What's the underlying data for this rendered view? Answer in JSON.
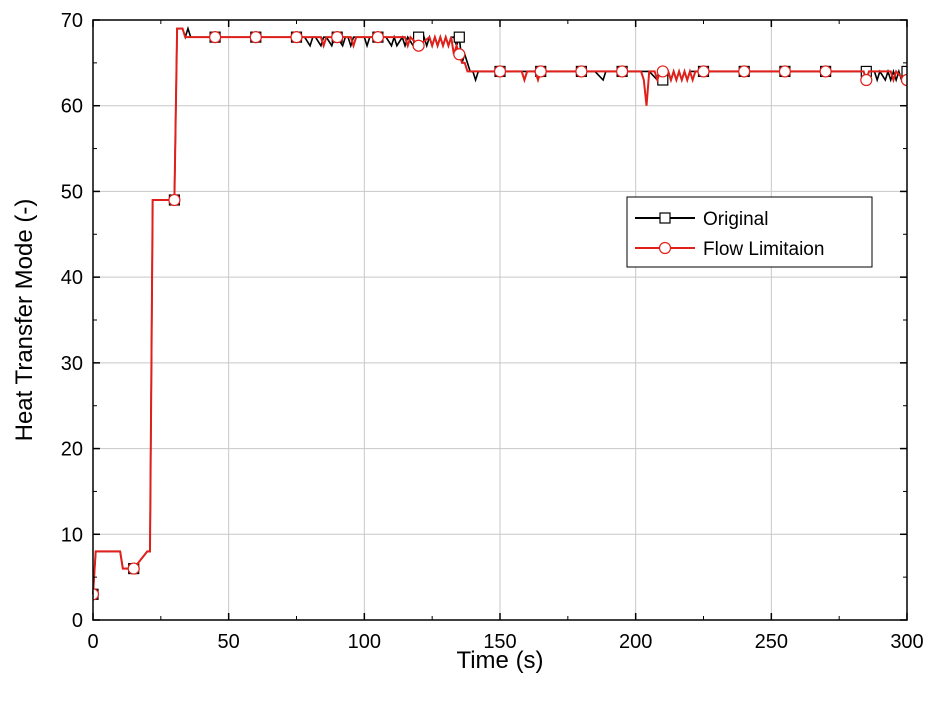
{
  "chart_data": {
    "type": "line",
    "xlabel": "Time (s)",
    "ylabel": "Heat Transfer Mode (-)",
    "xlim": [
      0,
      300
    ],
    "ylim": [
      0,
      70
    ],
    "xticks": [
      0,
      50,
      100,
      150,
      200,
      250,
      300
    ],
    "yticks": [
      0,
      10,
      20,
      30,
      40,
      50,
      60,
      70
    ],
    "grid": true,
    "legend_position": "right",
    "series": [
      {
        "name": "Original",
        "color": "#000000",
        "marker": "square",
        "x": [
          0,
          1,
          2,
          10,
          11,
          14,
          15,
          20,
          21,
          22,
          23,
          29,
          30,
          31,
          32,
          33,
          34,
          35,
          36,
          37,
          40,
          45,
          50,
          60,
          70,
          75,
          78,
          80,
          81,
          82,
          84,
          85,
          86,
          88,
          89,
          90,
          92,
          93,
          94,
          95,
          96,
          98,
          99,
          100,
          101,
          102,
          103,
          105,
          108,
          110,
          111,
          112,
          114,
          115,
          116,
          118,
          119,
          120,
          121,
          122,
          123,
          124,
          125,
          126,
          127,
          128,
          129,
          130,
          131,
          132,
          133,
          134,
          135,
          136,
          137,
          138,
          139,
          140,
          141,
          142,
          145,
          150,
          155,
          160,
          165,
          170,
          175,
          180,
          185,
          188,
          189,
          190,
          195,
          200,
          205,
          208,
          209,
          210,
          212,
          213,
          214,
          215,
          216,
          217,
          218,
          219,
          220,
          222,
          225,
          230,
          235,
          240,
          245,
          250,
          255,
          260,
          265,
          270,
          275,
          280,
          284,
          285,
          286,
          288,
          289,
          290,
          292,
          293,
          294,
          295,
          296,
          297,
          298,
          299
        ],
        "y": [
          3,
          8,
          8,
          8,
          6,
          6,
          6,
          8,
          8,
          49,
          49,
          49,
          49,
          69,
          69,
          69,
          68,
          69,
          68,
          68,
          68,
          68,
          68,
          68,
          68,
          68,
          68,
          67,
          68,
          68,
          67,
          68,
          68,
          67,
          68,
          68,
          67,
          68,
          68,
          67,
          68,
          68,
          68,
          68,
          67,
          68,
          68,
          68,
          68,
          67,
          68,
          67,
          68,
          67,
          68,
          67,
          68,
          68,
          67,
          68,
          67,
          68,
          67,
          68,
          67,
          68,
          67,
          68,
          67,
          68,
          68,
          67,
          68,
          65,
          66,
          65,
          64,
          64,
          63,
          64,
          64,
          64,
          64,
          64,
          64,
          64,
          64,
          64,
          64,
          63,
          64,
          64,
          64,
          64,
          64,
          63,
          64,
          63,
          64,
          63,
          64,
          63,
          64,
          63,
          64,
          63,
          64,
          64,
          64,
          64,
          64,
          64,
          64,
          64,
          64,
          64,
          64,
          64,
          64,
          64,
          64,
          63,
          64,
          64,
          63,
          64,
          63,
          64,
          63,
          64,
          63,
          64,
          63,
          64
        ],
        "marker_x": [
          0,
          15,
          30,
          45,
          60,
          75,
          90,
          105,
          120,
          135,
          150,
          165,
          180,
          195,
          210,
          225,
          240,
          255,
          270,
          285,
          300
        ],
        "marker_y": [
          3,
          6,
          49,
          68,
          68,
          68,
          68,
          68,
          68,
          68,
          64,
          64,
          64,
          64,
          63,
          64,
          64,
          64,
          64,
          64,
          64
        ]
      },
      {
        "name": "Flow Limitaion",
        "color": "#e0201b",
        "marker": "circle",
        "x": [
          0,
          1,
          2,
          10,
          11,
          14,
          15,
          20,
          21,
          22,
          23,
          29,
          30,
          31,
          32,
          33,
          34,
          35,
          40,
          45,
          50,
          60,
          70,
          75,
          80,
          84,
          85,
          86,
          90,
          95,
          96,
          97,
          100,
          105,
          110,
          115,
          116,
          117,
          120,
          124,
          125,
          126,
          127,
          128,
          129,
          130,
          131,
          132,
          133,
          134,
          135,
          136,
          137,
          138,
          139,
          140,
          145,
          150,
          155,
          158,
          159,
          160,
          163,
          164,
          165,
          170,
          175,
          180,
          185,
          190,
          195,
          200,
          202,
          203,
          204,
          205,
          207,
          208,
          209,
          210,
          212,
          213,
          214,
          215,
          216,
          217,
          218,
          219,
          220,
          221,
          222,
          225,
          230,
          235,
          240,
          245,
          250,
          255,
          260,
          265,
          270,
          275,
          280,
          284,
          285,
          286,
          290,
          294,
          295,
          296,
          299,
          300
        ],
        "y": [
          3,
          8,
          8,
          8,
          6,
          6,
          6,
          8,
          8,
          49,
          49,
          49,
          49,
          69,
          69,
          69,
          68,
          68,
          68,
          68,
          68,
          68,
          68,
          68,
          68,
          68,
          67,
          68,
          68,
          68,
          67,
          68,
          68,
          68,
          68,
          68,
          67,
          68,
          67,
          68,
          67,
          68,
          67,
          68,
          67,
          68,
          67,
          68,
          66,
          67,
          66,
          65,
          65,
          64,
          64,
          64,
          64,
          64,
          64,
          64,
          63,
          64,
          64,
          63,
          64,
          64,
          64,
          64,
          64,
          64,
          64,
          64,
          64,
          63,
          60,
          64,
          64,
          63,
          64,
          64,
          64,
          63,
          64,
          63,
          64,
          63,
          64,
          63,
          64,
          63,
          64,
          64,
          64,
          64,
          64,
          64,
          64,
          64,
          64,
          64,
          64,
          64,
          64,
          64,
          63,
          64,
          64,
          64,
          63,
          64,
          63,
          63
        ],
        "marker_x": [
          0,
          15,
          30,
          45,
          60,
          75,
          90,
          105,
          120,
          135,
          150,
          165,
          180,
          195,
          210,
          225,
          240,
          255,
          270,
          285,
          300
        ],
        "marker_y": [
          3,
          6,
          49,
          68,
          68,
          68,
          68,
          68,
          67,
          66,
          64,
          64,
          64,
          64,
          64,
          64,
          64,
          64,
          64,
          63,
          63
        ]
      }
    ]
  }
}
